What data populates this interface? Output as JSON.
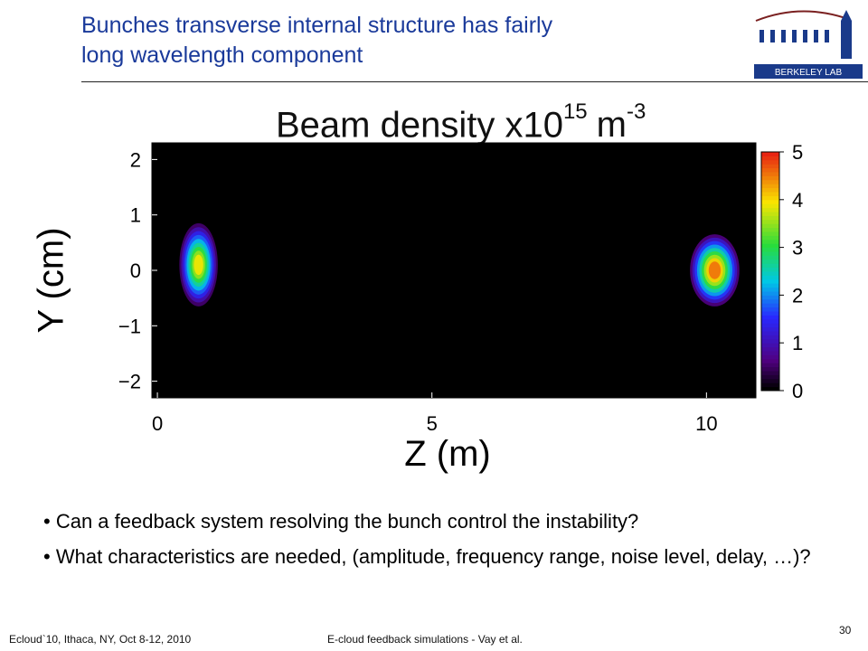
{
  "slide": {
    "title_line1": "Bunches transverse internal structure has fairly",
    "title_line2": "long wavelength component",
    "bullets": [
      "Can a feedback system resolving the bunch control the instability?",
      "What characteristics are needed, (amplitude, frequency range, noise level, delay, …)?"
    ],
    "footer_left": "Ecloud`10, Ithaca, NY, Oct 8-12, 2010",
    "footer_center": "E-cloud feedback simulations - Vay et al.",
    "page_number": "30",
    "logo_text": "BERKELEY LAB",
    "title_color": "#1a3a9a"
  },
  "chart_data": {
    "type": "heatmap",
    "title_prefix": "Beam density x10",
    "title_exponent": "15",
    "title_unit": "m",
    "title_unit_exponent": "-3",
    "xlabel": "Z (m)",
    "ylabel": "Y (cm)",
    "xlim": [
      -0.1,
      10.9
    ],
    "ylim": [
      -2.3,
      2.3
    ],
    "xticks": [
      0,
      5,
      10
    ],
    "xtick_labels": [
      "0",
      "5",
      "10"
    ],
    "yticks": [
      -2,
      -1,
      0,
      1,
      2
    ],
    "ytick_labels": [
      "−2",
      "−1",
      "0",
      "1",
      "2"
    ],
    "colorbar": {
      "range": [
        0,
        5
      ],
      "ticks": [
        0,
        1,
        2,
        3,
        4,
        5
      ],
      "tick_labels": [
        "0",
        "1",
        "2",
        "3",
        "4",
        "5"
      ],
      "colormap": "jet-on-black"
    },
    "background_color": "#000000",
    "regions": [
      {
        "z": 0.75,
        "y": 0.1,
        "sigma_z": 0.35,
        "sigma_y": 0.75,
        "peak": 4.3
      },
      {
        "z": 10.15,
        "y": 0.0,
        "sigma_z": 0.45,
        "sigma_y": 0.65,
        "peak": 5.0
      }
    ]
  }
}
